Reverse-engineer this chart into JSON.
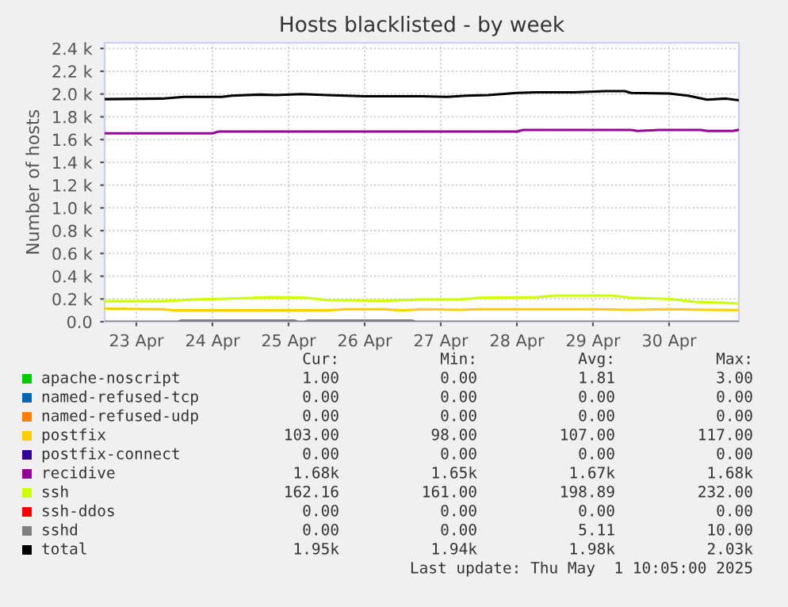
{
  "chart_data": {
    "type": "line",
    "title": "Hosts blacklisted - by week",
    "ylabel": "Number of hosts",
    "xlim": [
      "2025-04-23T02:00",
      "2025-05-01T10:00"
    ],
    "xticks": [
      {
        "value": "2025-04-23T12:00",
        "label": "23 Apr"
      },
      {
        "value": "2025-04-24T12:00",
        "label": "24 Apr"
      },
      {
        "value": "2025-04-25T12:00",
        "label": "25 Apr"
      },
      {
        "value": "2025-04-26T12:00",
        "label": "26 Apr"
      },
      {
        "value": "2025-04-27T12:00",
        "label": "27 Apr"
      },
      {
        "value": "2025-04-28T12:00",
        "label": "28 Apr"
      },
      {
        "value": "2025-04-29T12:00",
        "label": "29 Apr"
      },
      {
        "value": "2025-04-30T12:00",
        "label": "30 Apr"
      }
    ],
    "ylim": [
      0,
      2450
    ],
    "yticks": [
      {
        "value": 0,
        "label": "0.0"
      },
      {
        "value": 200,
        "label": "0.2 k"
      },
      {
        "value": 400,
        "label": "0.4 k"
      },
      {
        "value": 600,
        "label": "0.6 k"
      },
      {
        "value": 800,
        "label": "0.8 k"
      },
      {
        "value": 1000,
        "label": "1.0 k"
      },
      {
        "value": 1200,
        "label": "1.2 k"
      },
      {
        "value": 1400,
        "label": "1.4 k"
      },
      {
        "value": 1600,
        "label": "1.6 k"
      },
      {
        "value": 1800,
        "label": "1.8 k"
      },
      {
        "value": 2000,
        "label": "2.0 k"
      },
      {
        "value": 2200,
        "label": "2.2 k"
      },
      {
        "value": 2400,
        "label": "2.4 k"
      }
    ],
    "grid": true,
    "legend": "bottom",
    "marker": "none",
    "line_style": "solid",
    "series": [
      {
        "name": "apache-noscript",
        "color": "#00cc00"
      },
      {
        "name": "named-refused-tcp",
        "color": "#0066b3"
      },
      {
        "name": "named-refused-udp",
        "color": "#ff8000"
      },
      {
        "name": "postfix",
        "color": "#ffcc00",
        "x": [
          "2025-04-23T02:00",
          "2025-04-23T20:00",
          "2025-04-24T00:00",
          "2025-04-26T00:00",
          "2025-04-26T06:00",
          "2025-04-26T18:00",
          "2025-04-27T00:00",
          "2025-04-27T06:00",
          "2025-04-27T18:00",
          "2025-04-28T00:00",
          "2025-04-29T12:00",
          "2025-04-30T00:00",
          "2025-04-30T12:00",
          "2025-05-01T00:00",
          "2025-05-01T10:00"
        ],
        "values": [
          115,
          110,
          100,
          100,
          110,
          110,
          100,
          110,
          105,
          110,
          110,
          105,
          110,
          105,
          103
        ]
      },
      {
        "name": "postfix-connect",
        "color": "#330099"
      },
      {
        "name": "recidive",
        "color": "#990099",
        "x": [
          "2025-04-23T02:00",
          "2025-04-24T12:00",
          "2025-04-24T14:00",
          "2025-04-28T12:00",
          "2025-04-28T14:00",
          "2025-04-30T00:00",
          "2025-04-30T02:00",
          "2025-04-30T09:00",
          "2025-04-30T22:00",
          "2025-05-01T00:00",
          "2025-05-01T08:00",
          "2025-05-01T10:00"
        ],
        "values": [
          1655,
          1655,
          1670,
          1670,
          1685,
          1685,
          1675,
          1685,
          1685,
          1675,
          1675,
          1685
        ]
      },
      {
        "name": "ssh",
        "color": "#ccff00",
        "x": [
          "2025-04-23T02:00",
          "2025-04-23T20:00",
          "2025-04-24T06:00",
          "2025-04-24T20:00",
          "2025-04-25T06:00",
          "2025-04-25T18:00",
          "2025-04-26T00:00",
          "2025-04-26T18:00",
          "2025-04-27T06:00",
          "2025-04-27T18:00",
          "2025-04-28T00:00",
          "2025-04-28T18:00",
          "2025-04-29T00:00",
          "2025-04-29T18:00",
          "2025-04-30T00:00",
          "2025-04-30T12:00",
          "2025-04-30T20:00",
          "2025-05-01T06:00",
          "2025-05-01T10:00"
        ],
        "values": [
          180,
          180,
          195,
          205,
          215,
          210,
          190,
          185,
          195,
          195,
          210,
          215,
          230,
          230,
          210,
          200,
          175,
          165,
          160
        ]
      },
      {
        "name": "ssh-ddos",
        "color": "#ff0000"
      },
      {
        "name": "sshd",
        "color": "#808080",
        "x": [
          "2025-04-23T02:00",
          "2025-04-24T01:00",
          "2025-04-24T02:00",
          "2025-04-25T14:00",
          "2025-04-25T15:00",
          "2025-04-25T17:00",
          "2025-04-25T18:00",
          "2025-04-27T03:00",
          "2025-04-27T04:00",
          "2025-05-01T10:00"
        ],
        "values": [
          0,
          0,
          10,
          10,
          0,
          0,
          10,
          10,
          0,
          0
        ]
      },
      {
        "name": "total",
        "color": "#000000",
        "x": [
          "2025-04-23T02:00",
          "2025-04-23T20:00",
          "2025-04-24T03:00",
          "2025-04-24T15:00",
          "2025-04-24T18:00",
          "2025-04-25T03:00",
          "2025-04-25T08:00",
          "2025-04-25T16:00",
          "2025-04-26T00:00",
          "2025-04-26T12:00",
          "2025-04-27T06:00",
          "2025-04-27T14:00",
          "2025-04-27T20:00",
          "2025-04-28T03:00",
          "2025-04-28T12:00",
          "2025-04-28T18:00",
          "2025-04-29T06:00",
          "2025-04-29T16:00",
          "2025-04-29T22:00",
          "2025-04-30T00:00",
          "2025-04-30T12:00",
          "2025-04-30T18:00",
          "2025-05-01T00:00",
          "2025-05-01T06:00",
          "2025-05-01T10:00"
        ],
        "values": [
          1955,
          1960,
          1975,
          1975,
          1985,
          1995,
          1990,
          2000,
          1990,
          1980,
          1980,
          1975,
          1985,
          1990,
          2010,
          2015,
          2015,
          2025,
          2025,
          2010,
          2005,
          1985,
          1950,
          1960,
          1945
        ]
      }
    ],
    "annotations": [
      "Cur:",
      "Min:",
      "Avg:",
      "Max:",
      "1.00",
      "0.00",
      "1.81",
      "3.00",
      "0.00",
      "0.00",
      "0.00",
      "0.00",
      "0.00",
      "0.00",
      "0.00",
      "0.00",
      "103.00",
      "98.00",
      "107.00",
      "117.00",
      "0.00",
      "0.00",
      "0.00",
      "0.00",
      "1.68k",
      "1.65k",
      "1.67k",
      "1.68k",
      "162.16",
      "161.00",
      "198.89",
      "232.00",
      "0.00",
      "0.00",
      "0.00",
      "0.00",
      "0.00",
      "0.00",
      "5.11",
      "10.00",
      "1.95k",
      "1.94k",
      "1.98k",
      "2.03k",
      "Last update: Thu May  1 10:05:00 2025"
    ]
  }
}
